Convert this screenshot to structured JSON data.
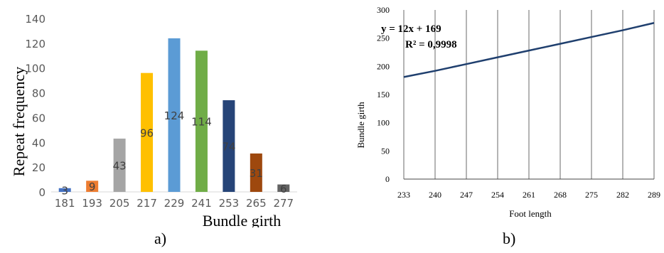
{
  "chart_data": [
    {
      "type": "bar",
      "categories": [
        "181",
        "193",
        "205",
        "217",
        "229",
        "241",
        "253",
        "265",
        "277"
      ],
      "values": [
        3,
        9,
        43,
        96,
        124,
        114,
        74,
        31,
        6
      ],
      "data_labels": [
        "3",
        "9",
        "43",
        "96",
        "124",
        "114",
        "74",
        "31",
        "6"
      ],
      "colors": [
        "#4472c4",
        "#ed7d31",
        "#a5a5a5",
        "#ffc000",
        "#5b9bd5",
        "#70ad47",
        "#264478",
        "#9e480e",
        "#636363"
      ],
      "yticks": [
        "0",
        "20",
        "40",
        "60",
        "80",
        "100",
        "120",
        "140"
      ],
      "ylim": [
        0,
        140
      ],
      "xlabel": "Bundle girth",
      "ylabel": "Repeat frequency",
      "grid": false,
      "legend": "none"
    },
    {
      "type": "line",
      "x": [
        233,
        240,
        247,
        254,
        261,
        268,
        275,
        282,
        289
      ],
      "y": [
        181,
        192,
        204,
        216,
        228,
        240,
        252,
        264,
        277
      ],
      "xticks": [
        "233",
        "240",
        "247",
        "254",
        "261",
        "268",
        "275",
        "282",
        "289"
      ],
      "yticks": [
        "0",
        "50",
        "100",
        "150",
        "200",
        "250",
        "300"
      ],
      "ylim": [
        0,
        300
      ],
      "xlabel": "Foot length",
      "ylabel": "Bundle girth",
      "line_color": "#1f3f6e",
      "grid": "vertical",
      "annotation": {
        "equation": "y = 12x + 169",
        "r_squared": "R² = 0,9998"
      }
    }
  ],
  "captions": {
    "a": "a)",
    "b": "b)"
  }
}
